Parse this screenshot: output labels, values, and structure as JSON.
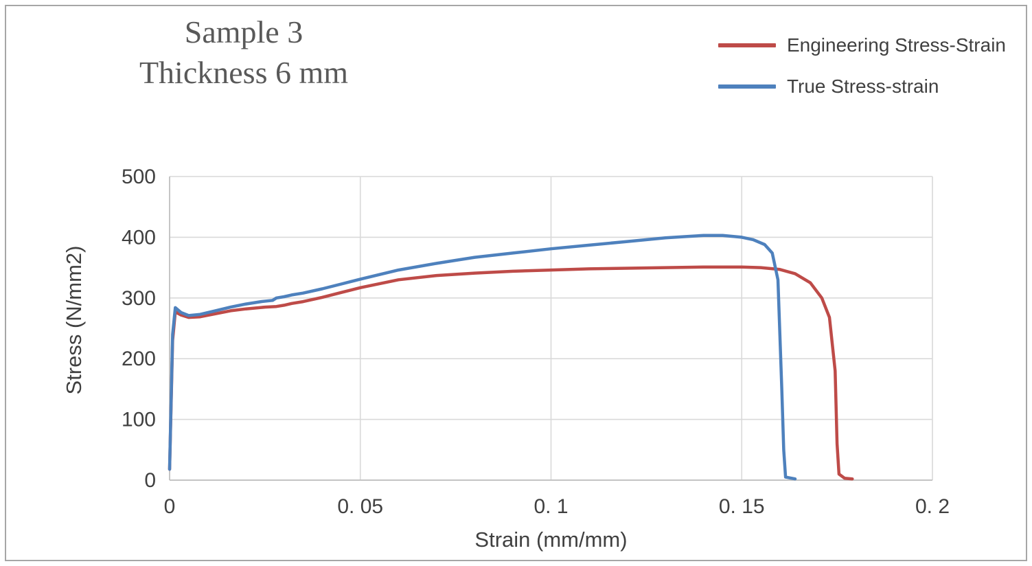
{
  "frame": {
    "border_color": "#a6a6a6",
    "background": "#ffffff"
  },
  "chart_data": {
    "type": "line",
    "title_line1": "Sample 3",
    "title_line2": "Thickness 6 mm",
    "xlabel": "Strain (mm/mm)",
    "ylabel": "Stress (N/mm2)",
    "xlim": [
      0,
      0.2
    ],
    "ylim": [
      0,
      500
    ],
    "x_ticks": [
      0,
      0.05,
      0.1,
      0.15,
      0.2
    ],
    "x_tick_labels": [
      "0",
      "0. 05",
      "0. 1",
      "0. 15",
      "0. 2"
    ],
    "y_ticks": [
      0,
      100,
      200,
      300,
      400,
      500
    ],
    "y_tick_labels": [
      "0",
      "100",
      "200",
      "300",
      "400",
      "500"
    ],
    "grid": true,
    "grid_color": "#d9d9d9",
    "axis_color": "#bfbfbf",
    "tick_label_color": "#404040",
    "legend_position": "top-right",
    "series": [
      {
        "name": "Engineering Stress-Strain",
        "color": "#be4b48",
        "x": [
          0,
          0.0008,
          0.0015,
          0.003,
          0.005,
          0.008,
          0.012,
          0.016,
          0.02,
          0.025,
          0.028,
          0.03,
          0.032,
          0.035,
          0.04,
          0.045,
          0.05,
          0.06,
          0.07,
          0.08,
          0.09,
          0.1,
          0.11,
          0.12,
          0.13,
          0.14,
          0.15,
          0.155,
          0.16,
          0.164,
          0.168,
          0.171,
          0.173,
          0.1745,
          0.175,
          0.1755,
          0.177,
          0.179
        ],
        "y": [
          18,
          230,
          277,
          272,
          268,
          269,
          274,
          279,
          282,
          285,
          286,
          288,
          291,
          294,
          301,
          309,
          317,
          330,
          337,
          341,
          344,
          346,
          348,
          349,
          350,
          351,
          351,
          350,
          347,
          340,
          325,
          300,
          268,
          180,
          60,
          10,
          3,
          2
        ]
      },
      {
        "name": "True Stress-strain",
        "color": "#4e81bd",
        "x": [
          0,
          0.0008,
          0.0015,
          0.003,
          0.005,
          0.008,
          0.012,
          0.016,
          0.02,
          0.024,
          0.027,
          0.028,
          0.03,
          0.032,
          0.035,
          0.04,
          0.045,
          0.05,
          0.06,
          0.07,
          0.08,
          0.09,
          0.1,
          0.11,
          0.12,
          0.13,
          0.135,
          0.14,
          0.145,
          0.15,
          0.153,
          0.156,
          0.158,
          0.1595,
          0.1605,
          0.161,
          0.1615,
          0.164
        ],
        "y": [
          18,
          240,
          284,
          276,
          271,
          273,
          279,
          285,
          290,
          294,
          296,
          300,
          302,
          305,
          308,
          315,
          323,
          331,
          346,
          357,
          367,
          374,
          381,
          387,
          393,
          399,
          401,
          403,
          403,
          400,
          396,
          388,
          374,
          330,
          150,
          50,
          5,
          2
        ]
      }
    ]
  }
}
